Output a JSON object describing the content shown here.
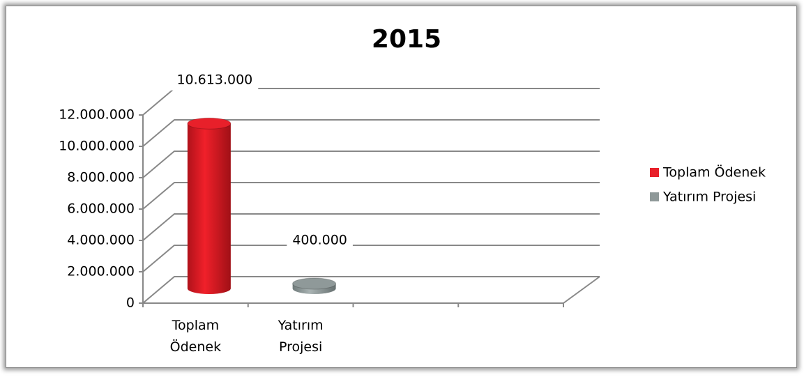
{
  "chart_data": {
    "type": "bar3d",
    "title": "2015",
    "categories": [
      "Toplam Ödenek",
      "Yatırım Projesi",
      null,
      null
    ],
    "series": [
      {
        "name": "Toplam Ödenek",
        "color": "#e8202a",
        "values": [
          10613000,
          null,
          null,
          null
        ],
        "value_labels": [
          "10.613.000",
          null,
          null,
          null
        ]
      },
      {
        "name": "Yatırım Projesi",
        "color": "#8f9999",
        "values": [
          null,
          400000,
          null,
          null
        ],
        "value_labels": [
          null,
          "400.000",
          null,
          null
        ]
      }
    ],
    "ylim": [
      0,
      12000000
    ],
    "yticks": [
      {
        "value": 0,
        "label": "0"
      },
      {
        "value": 2000000,
        "label": "2.000.000"
      },
      {
        "value": 4000000,
        "label": "4.000.000"
      },
      {
        "value": 6000000,
        "label": "6.000.000"
      },
      {
        "value": 8000000,
        "label": "8.000.000"
      },
      {
        "value": 10000000,
        "label": "10.000.000"
      },
      {
        "value": 12000000,
        "label": "12.000.000"
      }
    ],
    "grid": true,
    "legend": "right"
  }
}
